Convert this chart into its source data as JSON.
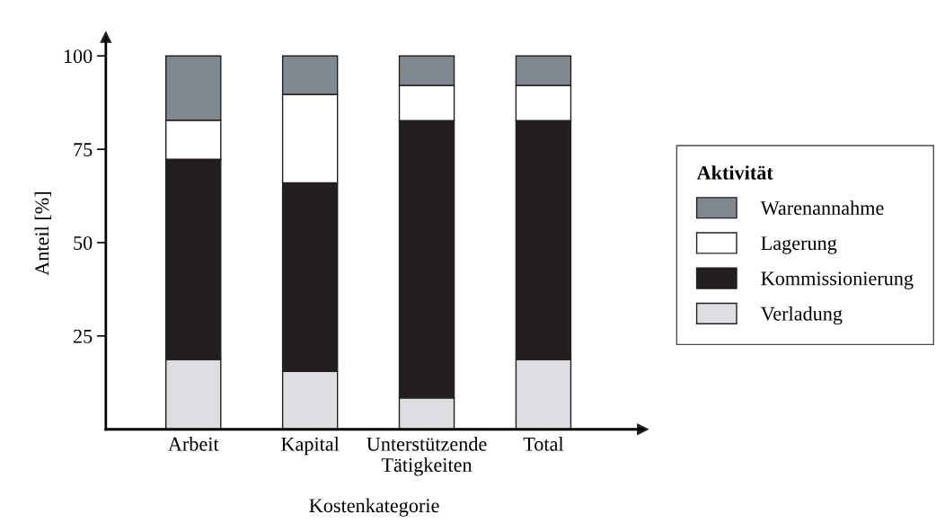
{
  "chart_data": {
    "type": "bar",
    "stacked": true,
    "xlabel": "Kostenkategorie",
    "ylabel": "Anteil [%]",
    "legend_title": "Aktivität",
    "legend": "right",
    "categories": [
      "Arbeit",
      "Kapital",
      "Unterstützende\nTätigkeiten",
      "Total"
    ],
    "ylim": [
      0,
      105
    ],
    "yticks": [
      25,
      50,
      75,
      100
    ],
    "grid": false,
    "series": [
      {
        "name": "Verladung",
        "color": "#dcdee2",
        "values": [
          18.7,
          15.5,
          8.4,
          18.7
        ]
      },
      {
        "name": "Kommissionierung",
        "color": "#231f20",
        "values": [
          53.6,
          50.5,
          74.3,
          64.0
        ]
      },
      {
        "name": "Lagerung",
        "color": "#ffffff",
        "values": [
          10.5,
          23.7,
          9.4,
          9.4
        ]
      },
      {
        "name": "Warenannahme",
        "color": "#808890",
        "values": [
          17.2,
          10.3,
          7.9,
          7.9
        ]
      }
    ]
  }
}
